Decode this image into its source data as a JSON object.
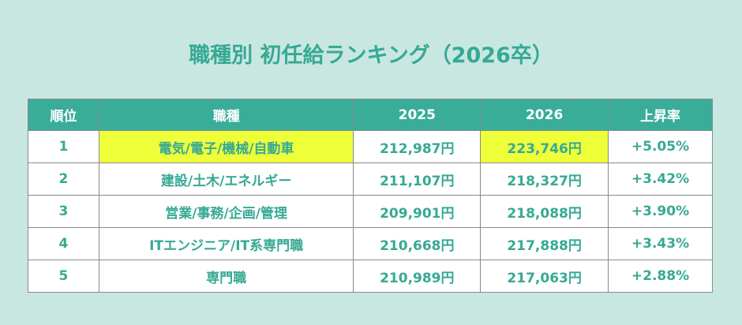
{
  "title": "職種別 初任給ランキング（2026卒）",
  "headers": [
    "順位",
    "職種",
    "2025",
    "2026",
    "上昇率"
  ],
  "rows": [
    {
      "rank": "1",
      "job": "電気/電子/機械/自動車",
      "y2025": "212,987円",
      "y2026": "223,746円",
      "rate": "+5.05%"
    },
    {
      "rank": "2",
      "job": "建設/土木/エネルギー",
      "y2025": "211,107円",
      "y2026": "218,327円",
      "rate": "+3.42%"
    },
    {
      "rank": "3",
      "job": "営業/事務/企画/管理",
      "y2025": "209,901円",
      "y2026": "218,088円",
      "rate": "+3.90%"
    },
    {
      "rank": "4",
      "job": "ITエンジニア/IT系専門職",
      "y2025": "210,668円",
      "y2026": "217,888円",
      "rate": "+3.43%"
    },
    {
      "rank": "5",
      "job": "専門職",
      "y2025": "210,989円",
      "y2026": "217,063円",
      "rate": "+2.88%"
    }
  ],
  "colors": {
    "header": "#39ad9a",
    "text": "#36a994",
    "highlight": "#eeff3a",
    "background": "#c9e7e1"
  }
}
